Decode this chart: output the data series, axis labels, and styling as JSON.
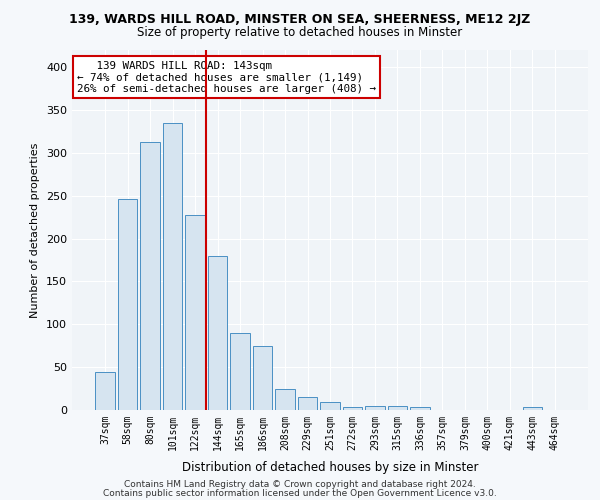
{
  "title": "139, WARDS HILL ROAD, MINSTER ON SEA, SHEERNESS, ME12 2JZ",
  "subtitle": "Size of property relative to detached houses in Minster",
  "xlabel": "Distribution of detached houses by size in Minster",
  "ylabel": "Number of detached properties",
  "bar_color": "#d6e4f0",
  "bar_edge_color": "#4a90c4",
  "categories": [
    "37sqm",
    "58sqm",
    "80sqm",
    "101sqm",
    "122sqm",
    "144sqm",
    "165sqm",
    "186sqm",
    "208sqm",
    "229sqm",
    "251sqm",
    "272sqm",
    "293sqm",
    "315sqm",
    "336sqm",
    "357sqm",
    "379sqm",
    "400sqm",
    "421sqm",
    "443sqm",
    "464sqm"
  ],
  "values": [
    44,
    246,
    313,
    335,
    228,
    180,
    90,
    75,
    25,
    15,
    9,
    4,
    5,
    5,
    4,
    0,
    0,
    0,
    0,
    3,
    0
  ],
  "vline_x_index": 5,
  "vline_color": "#cc0000",
  "annotation_line1": "   139 WARDS HILL ROAD: 143sqm",
  "annotation_line2": "← 74% of detached houses are smaller (1,149)",
  "annotation_line3": "26% of semi-detached houses are larger (408) →",
  "annotation_box_facecolor": "#ffffff",
  "annotation_box_edgecolor": "#cc0000",
  "ylim": [
    0,
    420
  ],
  "yticks": [
    0,
    50,
    100,
    150,
    200,
    250,
    300,
    350,
    400
  ],
  "footer1": "Contains HM Land Registry data © Crown copyright and database right 2024.",
  "footer2": "Contains public sector information licensed under the Open Government Licence v3.0.",
  "fig_facecolor": "#f5f8fb",
  "plot_facecolor": "#f0f4f8",
  "grid_color": "#ffffff",
  "title_fontsize": 9,
  "subtitle_fontsize": 8.5,
  "ylabel_fontsize": 8,
  "xlabel_fontsize": 8.5,
  "tick_fontsize": 7,
  "footer_fontsize": 6.5,
  "annotation_fontsize": 7.8
}
